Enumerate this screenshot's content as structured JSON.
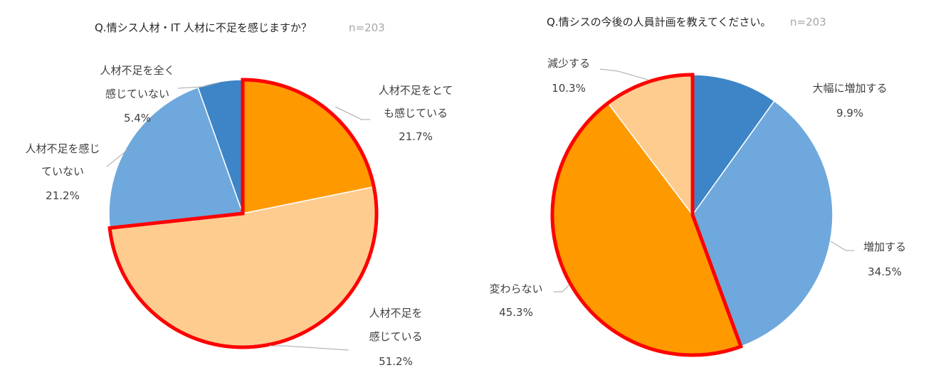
{
  "chart_data": [
    {
      "type": "pie",
      "title": "Q.情シス人材・IT 人材に不足を感じますか？",
      "sample_size": "n=203",
      "slices": [
        {
          "label_lines": [
            "人材不足をとて",
            "も感じている"
          ],
          "value": 21.7,
          "value_label": "21.7%",
          "color": "#ff9900",
          "highlighted": true
        },
        {
          "label_lines": [
            "人材不足を",
            "感じている"
          ],
          "value": 51.2,
          "value_label": "51.2%",
          "color": "#ffcc90",
          "highlighted": true
        },
        {
          "label_lines": [
            "人材不足を感じ",
            "ていない"
          ],
          "value": 21.2,
          "value_label": "21.2%",
          "color": "#6fa8dc",
          "highlighted": false
        },
        {
          "label_lines": [
            "人材不足を全く",
            "感じていない"
          ],
          "value": 5.4,
          "value_label": "5.4%",
          "color": "#3d85c6",
          "highlighted": false
        }
      ],
      "highlight_color": "#ff0000",
      "legend": "none"
    },
    {
      "type": "pie",
      "title": "Q.情シスの今後の人員計画を教えてください。",
      "sample_size": "n=203",
      "slices": [
        {
          "label_lines": [
            "大幅に増加する"
          ],
          "value": 9.9,
          "value_label": "9.9%",
          "color": "#3d85c6",
          "highlighted": false
        },
        {
          "label_lines": [
            "増加する"
          ],
          "value": 34.5,
          "value_label": "34.5%",
          "color": "#6fa8dc",
          "highlighted": false
        },
        {
          "label_lines": [
            "変わらない"
          ],
          "value": 45.3,
          "value_label": "45.3%",
          "color": "#ff9900",
          "highlighted": true
        },
        {
          "label_lines": [
            "減少する"
          ],
          "value": 10.3,
          "value_label": "10.3%",
          "color": "#ffcc90",
          "highlighted": true
        }
      ],
      "highlight_color": "#ff0000",
      "legend": "none"
    }
  ]
}
